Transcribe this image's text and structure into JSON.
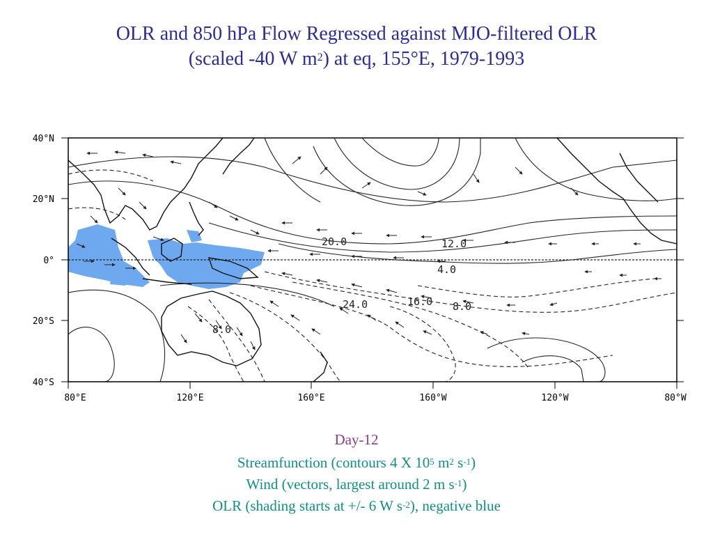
{
  "title": {
    "line1": "OLR and 850 hPa Flow Regressed against MJO-filtered OLR",
    "line2_pre": "(scaled -40 W m",
    "line2_sup": "2",
    "line2_post": ") at eq, 155°E, 1979-1993"
  },
  "map": {
    "lat_labels": [
      "40°N",
      "20°N",
      "0°",
      "20°S",
      "40°S"
    ],
    "lon_labels": [
      "80°E",
      "120°E",
      "160°E",
      "160°W",
      "120°W",
      "80°W"
    ],
    "contour_labels": [
      "20.0",
      "12.0",
      "4.0",
      "24.0",
      "8.0",
      "16.0",
      "8.0"
    ],
    "colors": {
      "olr_negative": "#6ea9ef",
      "contour": "#222222",
      "frame": "#000000"
    }
  },
  "caption": {
    "day": "Day-12",
    "line1_pre": "Streamfunction (contours 4 X 10",
    "line1_sup1": "5",
    "line1_mid": " m",
    "line1_sup2": "2",
    "line1_mid2": " s",
    "line1_sup3": "-1",
    "line1_post": ")",
    "line2_pre": "Wind (vectors, largest around 2 m s",
    "line2_sup": "-1",
    "line2_post": ")",
    "line3_pre": "OLR (shading starts at +/- 6 W s",
    "line3_sup": "-2",
    "line3_post": "), negative blue"
  }
}
